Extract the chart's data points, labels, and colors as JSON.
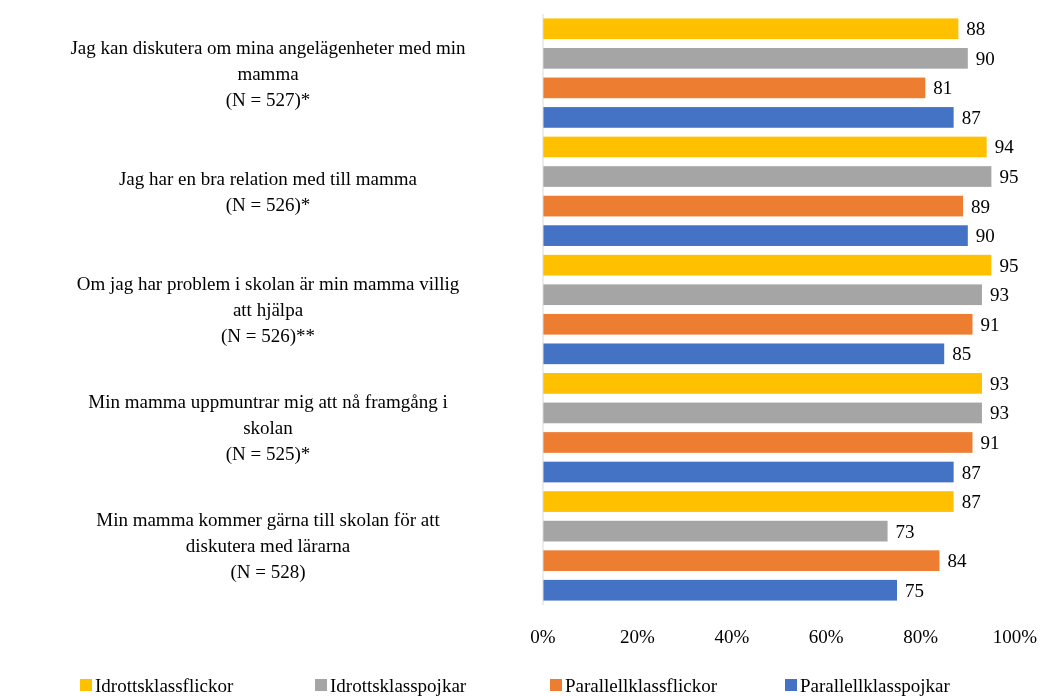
{
  "chart_data": {
    "type": "bar",
    "orientation": "horizontal",
    "categories": [
      "Jag kan diskutera om mina angelägenheter med min\nmamma\n(N = 527)*",
      "Jag har en bra relation med till mamma\n(N = 526)*",
      "Om jag har problem i skolan är min mamma villig\natt hjälpa\n(N = 526)**",
      "Min mamma uppmuntrar mig att nå framgång i\nskolan\n(N = 525)*",
      "Min mamma kommer gärna till skolan för att\ndiskutera med lärarna\n(N = 528)"
    ],
    "series": [
      {
        "name": "Idrottsklassflickor",
        "color": "#ffc000",
        "values": [
          88,
          94,
          95,
          93,
          87
        ]
      },
      {
        "name": "Idrottsklasspojkar",
        "color": "#a5a5a5",
        "values": [
          90,
          95,
          93,
          93,
          73
        ]
      },
      {
        "name": "Parallellklassflickor",
        "color": "#ed7d31",
        "values": [
          81,
          89,
          91,
          91,
          84
        ]
      },
      {
        "name": "Parallellklasspojkar",
        "color": "#4472c4",
        "values": [
          87,
          90,
          85,
          87,
          75
        ]
      }
    ],
    "xlim": [
      0,
      100
    ],
    "xticks": [
      {
        "value": 0,
        "label": "0%"
      },
      {
        "value": 20,
        "label": "20%"
      },
      {
        "value": 40,
        "label": "40%"
      },
      {
        "value": 60,
        "label": "60%"
      },
      {
        "value": 80,
        "label": "80%"
      },
      {
        "value": 100,
        "label": "100%"
      }
    ],
    "data_labels": true,
    "legend": "bottom",
    "grid": false
  }
}
